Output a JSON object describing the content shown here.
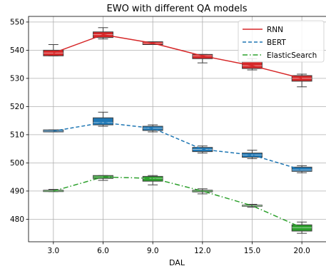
{
  "chart_data": {
    "type": "box",
    "title": "EWO with different QA models",
    "xlabel": "DAL",
    "ylabel": "",
    "categories": [
      "3.0",
      "6.0",
      "9.0",
      "12.0",
      "15.0",
      "20.0"
    ],
    "ylim": [
      472,
      552
    ],
    "yticks": [
      480,
      490,
      500,
      510,
      520,
      530,
      540,
      550
    ],
    "grid": true,
    "legend_position": "top-right",
    "series": [
      {
        "name": "RNN",
        "color": "#d62728",
        "line_style": "solid",
        "line": [
          539,
          545.5,
          542.5,
          538,
          534.5,
          530
        ],
        "boxes": [
          {
            "whislo": 538,
            "q1": 538,
            "med": 539,
            "q3": 540,
            "whishi": 542
          },
          {
            "whislo": 544,
            "q1": 544.5,
            "med": 545.5,
            "q3": 546.5,
            "whishi": 548
          },
          {
            "whislo": 542,
            "q1": 542,
            "med": 542.5,
            "q3": 543,
            "whishi": 543
          },
          {
            "whislo": 535.5,
            "q1": 537,
            "med": 538,
            "q3": 538.5,
            "whishi": 538.5
          },
          {
            "whislo": 533,
            "q1": 533.5,
            "med": 534.5,
            "q3": 536,
            "whishi": 537
          },
          {
            "whislo": 527,
            "q1": 529,
            "med": 530,
            "q3": 531,
            "whishi": 531.5
          }
        ]
      },
      {
        "name": "BERT",
        "color": "#1f77b4",
        "line_style": "dashed",
        "line": [
          511.3,
          514.3,
          512.3,
          504.8,
          502.8,
          497.5
        ],
        "boxes": [
          {
            "whislo": 511,
            "q1": 511,
            "med": 511.3,
            "q3": 511.7,
            "whishi": 511.7
          },
          {
            "whislo": 513,
            "q1": 513.5,
            "med": 514.3,
            "q3": 516,
            "whishi": 518
          },
          {
            "whislo": 511,
            "q1": 511.5,
            "med": 512.3,
            "q3": 513,
            "whishi": 513.5
          },
          {
            "whislo": 503.5,
            "q1": 504,
            "med": 504.8,
            "q3": 505.5,
            "whishi": 506
          },
          {
            "whislo": 501.5,
            "q1": 502,
            "med": 502.8,
            "q3": 503.5,
            "whishi": 504.5
          },
          {
            "whislo": 496.5,
            "q1": 497,
            "med": 497.5,
            "q3": 498.5,
            "whishi": 499
          }
        ]
      },
      {
        "name": "ElasticSearch",
        "color": "#2ca02c",
        "line_style": "dashdot",
        "line": [
          490,
          495,
          494.5,
          490,
          484.8,
          477
        ],
        "boxes": [
          {
            "whislo": 489.8,
            "q1": 489.8,
            "med": 490,
            "q3": 490.3,
            "whishi": 490.6
          },
          {
            "whislo": 493.8,
            "q1": 494.5,
            "med": 495,
            "q3": 495.5,
            "whishi": 495.5
          },
          {
            "whislo": 492.2,
            "q1": 493.5,
            "med": 494.5,
            "q3": 495.2,
            "whishi": 495.5
          },
          {
            "whislo": 489,
            "q1": 489.7,
            "med": 490,
            "q3": 490.3,
            "whishi": 490.8
          },
          {
            "whislo": 484.3,
            "q1": 484.6,
            "med": 484.8,
            "q3": 485,
            "whishi": 485.3
          },
          {
            "whislo": 475,
            "q1": 475.8,
            "med": 477,
            "q3": 478,
            "whishi": 479
          }
        ]
      }
    ]
  }
}
